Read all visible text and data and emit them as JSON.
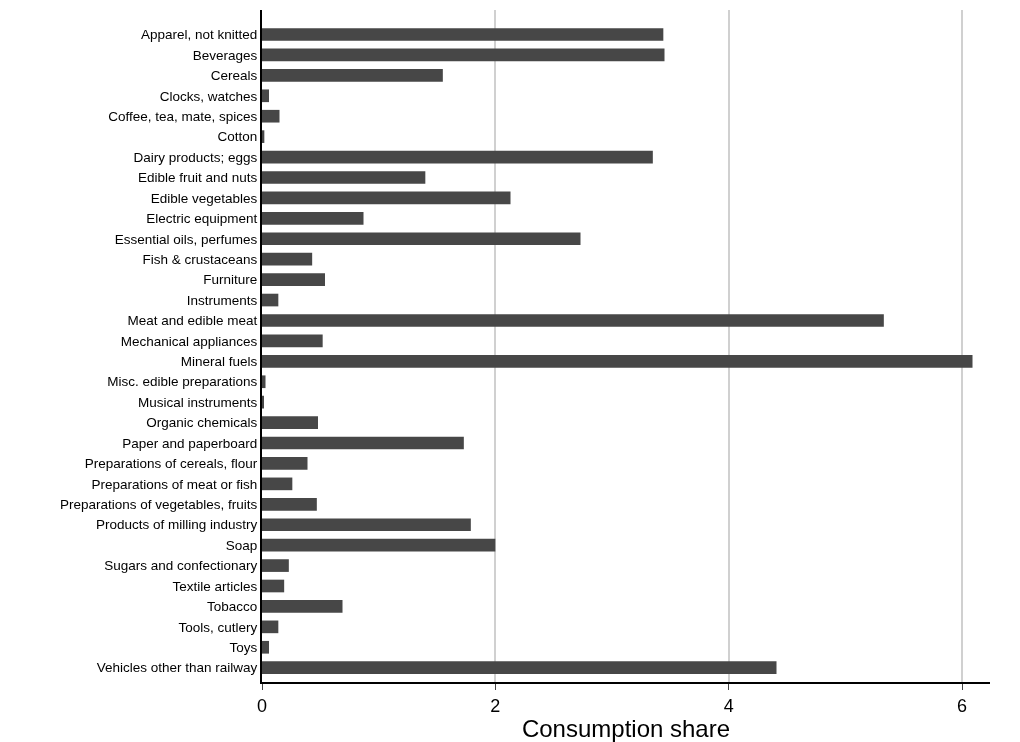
{
  "chart_data": {
    "type": "bar",
    "orientation": "horizontal",
    "xlabel": "Consumption share",
    "categories": [
      "Apparel, not knitted",
      "Beverages",
      "Cereals",
      "Clocks, watches",
      "Coffee, tea, mate, spices",
      "Cotton",
      "Dairy products; eggs",
      "Edible fruit and nuts",
      "Edible vegetables",
      "Electric equipment",
      "Essential oils, perfumes",
      "Fish & crustaceans",
      "Furniture",
      "Instruments",
      "Meat and edible meat",
      "Mechanical appliances",
      "Mineral fuels",
      "Misc. edible preparations",
      "Musical instruments",
      "Organic chemicals",
      "Paper and paperboard",
      "Preparations of cereals, flour",
      "Preparations of meat or fish",
      "Preparations of vegetables, fruits",
      "Products of milling industry",
      "Soap",
      "Sugars and confectionary",
      "Textile articles",
      "Tobacco",
      "Tools, cutlery",
      "Toys",
      "Vehicles other than railway"
    ],
    "values": [
      3.44,
      3.45,
      1.55,
      0.06,
      0.15,
      0.02,
      3.35,
      1.4,
      2.13,
      0.87,
      2.73,
      0.43,
      0.54,
      0.14,
      5.33,
      0.52,
      6.09,
      0.03,
      0.01,
      0.48,
      1.73,
      0.39,
      0.26,
      0.47,
      1.79,
      2.0,
      0.23,
      0.19,
      0.69,
      0.14,
      0.06,
      4.41
    ],
    "color": "#474747",
    "xlim": [
      0,
      6.24
    ],
    "xticks": [
      0,
      2,
      4,
      6
    ],
    "grid": "x"
  }
}
